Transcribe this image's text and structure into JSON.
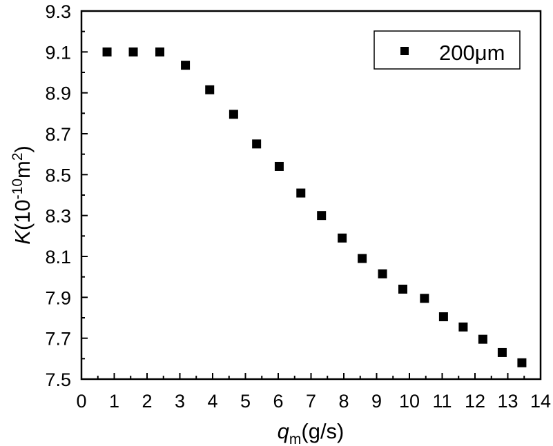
{
  "chart_data": {
    "type": "scatter",
    "xlabel": {
      "main": "q",
      "sub": "m",
      "unit": "(g/s)"
    },
    "ylabel": {
      "main": "K",
      "unit_prefix": "(10",
      "exp": "-10",
      "unit_mid": "m",
      "exp2": "2",
      "unit_suffix": ")"
    },
    "xlim": [
      0,
      14
    ],
    "ylim": [
      7.5,
      9.3
    ],
    "xticks": [
      0,
      1,
      2,
      3,
      4,
      5,
      6,
      7,
      8,
      9,
      10,
      11,
      12,
      13,
      14
    ],
    "yticks": [
      7.5,
      7.7,
      7.9,
      8.1,
      8.3,
      8.5,
      8.7,
      8.9,
      9.1,
      9.3
    ],
    "ytick_labels": [
      "7.5",
      "7.7",
      "7.9",
      "8.1",
      "8.3",
      "8.5",
      "8.7",
      "8.9",
      "9.1",
      "9.3"
    ],
    "grid": false,
    "legend_position": "top-right",
    "marker": "square",
    "color": "#000000",
    "series": [
      {
        "name": "200μm",
        "x": [
          0.78,
          1.58,
          2.39,
          3.17,
          3.91,
          4.64,
          5.34,
          6.03,
          6.69,
          7.32,
          7.95,
          8.56,
          9.18,
          9.8,
          10.46,
          11.04,
          11.64,
          12.24,
          12.83,
          13.43
        ],
        "y": [
          9.1,
          9.1,
          9.1,
          9.035,
          8.915,
          8.795,
          8.65,
          8.54,
          8.41,
          8.3,
          8.19,
          8.09,
          8.015,
          7.94,
          7.895,
          7.805,
          7.755,
          7.695,
          7.63,
          7.58
        ]
      }
    ]
  }
}
